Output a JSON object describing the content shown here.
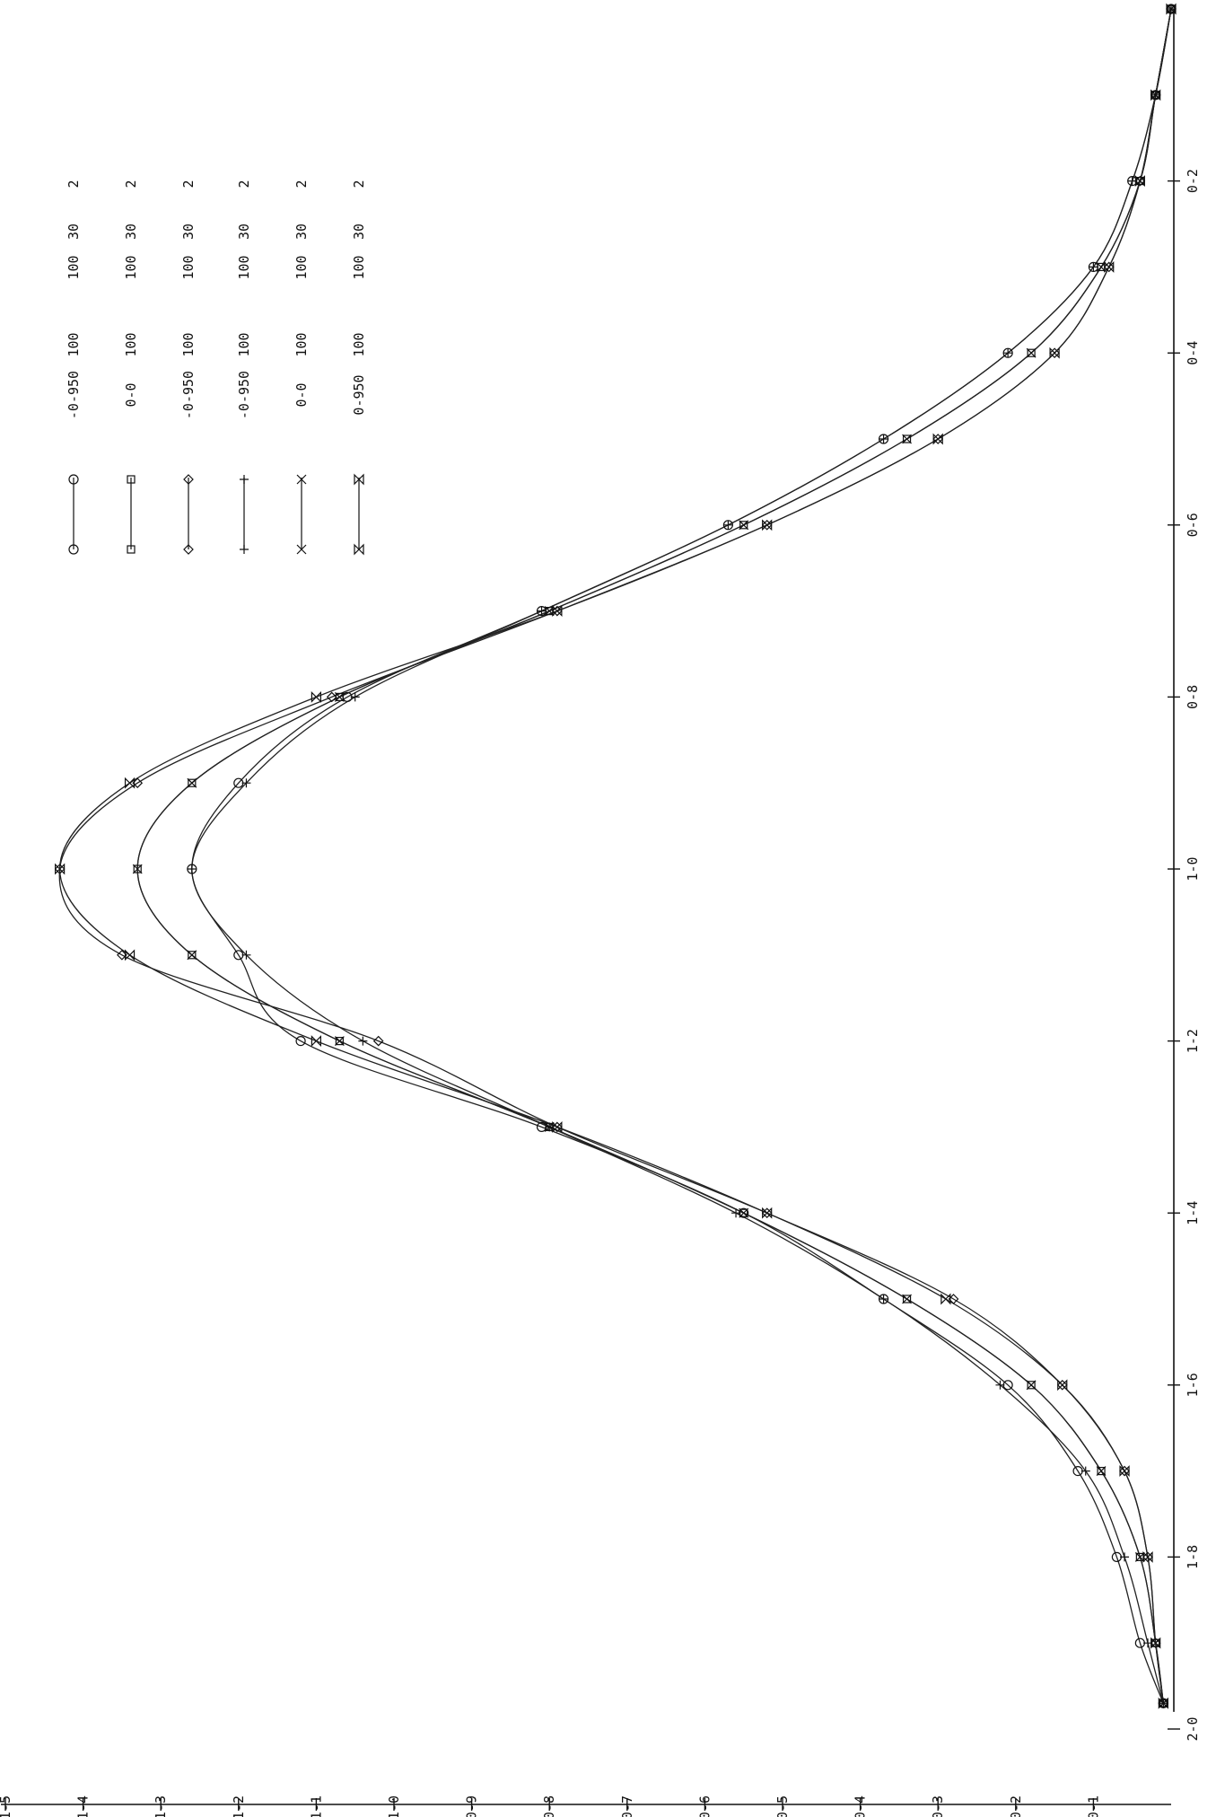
{
  "chart_data": {
    "type": "line",
    "orientation": "rotated-90-clockwise",
    "x_ticks": [
      "0-2",
      "0-4",
      "0-6",
      "0-8",
      "1-0",
      "1-2",
      "1-4",
      "1-6",
      "1-8",
      "2-0"
    ],
    "x_tick_values": [
      0.2,
      0.4,
      0.6,
      0.8,
      1.0,
      1.2,
      1.4,
      1.6,
      1.8,
      2.0
    ],
    "y_ticks": [
      "0-1",
      "0-2",
      "0-3",
      "0-4",
      "0-5",
      "0-6",
      "0-7",
      "0-8",
      "0-9",
      "1-0",
      "1-1",
      "1-2",
      "1-3",
      "1-4",
      "1-5"
    ],
    "y_tick_values": [
      0.1,
      0.2,
      0.3,
      0.4,
      0.5,
      0.6,
      0.7,
      0.8,
      0.9,
      1.0,
      1.1,
      1.2,
      1.3,
      1.4,
      1.5
    ],
    "xlim": [
      0.0,
      2.0
    ],
    "ylim": [
      0.0,
      1.5
    ],
    "x": [
      0.0,
      0.1,
      0.2,
      0.3,
      0.4,
      0.5,
      0.6,
      0.7,
      0.8,
      0.9,
      1.0,
      1.1,
      1.2,
      1.3,
      1.4,
      1.5,
      1.6,
      1.7,
      1.8,
      1.9,
      1.97
    ],
    "grid": false,
    "legend_placement": "upper-right",
    "series": [
      {
        "marker": "circle",
        "legend": [
          "-0-950",
          "100",
          "100",
          "30",
          "2"
        ],
        "values": [
          0.0,
          0.02,
          0.05,
          0.1,
          0.21,
          0.37,
          0.57,
          0.81,
          1.06,
          1.2,
          1.26,
          1.2,
          1.12,
          0.81,
          0.55,
          0.37,
          0.21,
          0.12,
          0.07,
          0.04,
          0.01
        ]
      },
      {
        "marker": "square",
        "legend": [
          "0-0",
          "100",
          "100",
          "30",
          "2"
        ],
        "values": [
          0.0,
          0.02,
          0.04,
          0.09,
          0.18,
          0.34,
          0.55,
          0.8,
          1.07,
          1.26,
          1.33,
          1.26,
          1.07,
          0.8,
          0.55,
          0.34,
          0.18,
          0.09,
          0.04,
          0.02,
          0.01
        ]
      },
      {
        "marker": "diamond",
        "legend": [
          "-0-950",
          "100",
          "100",
          "30",
          "2"
        ],
        "values": [
          0.0,
          0.02,
          0.04,
          0.08,
          0.15,
          0.3,
          0.52,
          0.79,
          1.08,
          1.33,
          1.43,
          1.35,
          1.02,
          0.79,
          0.52,
          0.28,
          0.14,
          0.06,
          0.03,
          0.02,
          0.01
        ]
      },
      {
        "marker": "plus",
        "legend": [
          "-0-950",
          "100",
          "100",
          "30",
          "2"
        ],
        "values": [
          0.0,
          0.02,
          0.05,
          0.1,
          0.21,
          0.37,
          0.57,
          0.81,
          1.05,
          1.19,
          1.26,
          1.19,
          1.04,
          0.8,
          0.56,
          0.37,
          0.22,
          0.11,
          0.06,
          0.03,
          0.01
        ]
      },
      {
        "marker": "x",
        "legend": [
          "0-0",
          "100",
          "100",
          "30",
          "2"
        ],
        "values": [
          0.0,
          0.02,
          0.04,
          0.09,
          0.18,
          0.34,
          0.55,
          0.8,
          1.07,
          1.26,
          1.33,
          1.26,
          1.07,
          0.8,
          0.55,
          0.34,
          0.18,
          0.09,
          0.04,
          0.02,
          0.01
        ]
      },
      {
        "marker": "bowtie",
        "legend": [
          "0-950",
          "100",
          "100",
          "30",
          "2"
        ],
        "values": [
          0.0,
          0.02,
          0.04,
          0.08,
          0.15,
          0.3,
          0.52,
          0.79,
          1.1,
          1.34,
          1.43,
          1.34,
          1.1,
          0.79,
          0.52,
          0.29,
          0.14,
          0.06,
          0.03,
          0.02,
          0.01
        ]
      }
    ]
  }
}
